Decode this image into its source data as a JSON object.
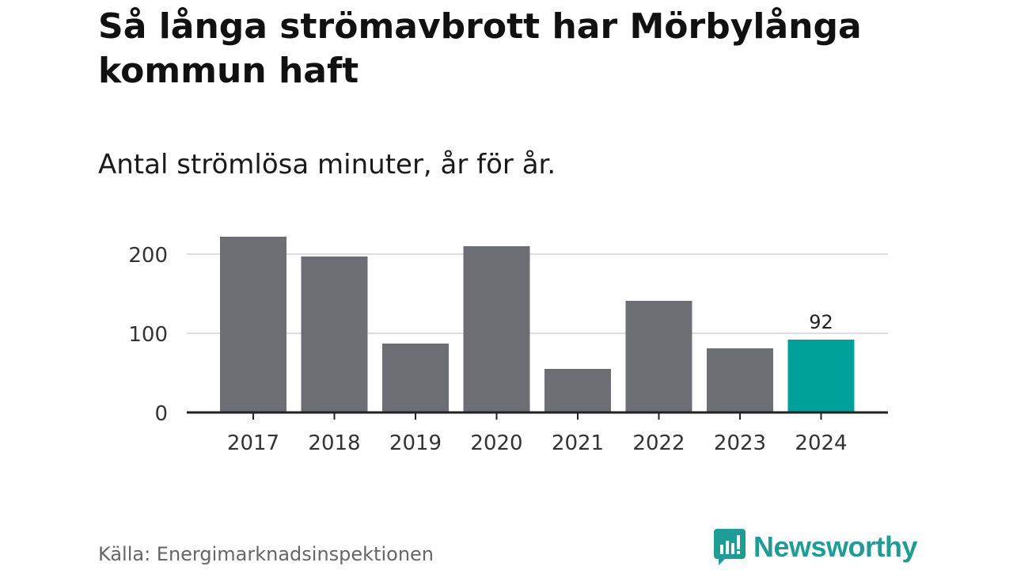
{
  "title": "Så långa strömavbrott har Mörbylånga kommun haft",
  "subtitle": "Antal strömlösa minuter, år för år.",
  "source": "Källa: Energimarknadsinspektionen",
  "brand": {
    "name": "Newsworthy",
    "icon": "newsworthy-logo-icon",
    "color": "#1c9e97"
  },
  "colors": {
    "bar": "#6d6d74",
    "highlight": "#00a19a",
    "grid": "#dddddd",
    "axis": "#222222"
  },
  "chart_data": {
    "type": "bar",
    "categories": [
      "2017",
      "2018",
      "2019",
      "2020",
      "2021",
      "2022",
      "2023",
      "2024"
    ],
    "values": [
      222,
      197,
      87,
      210,
      55,
      141,
      81,
      92
    ],
    "highlight_index": 7,
    "data_labels": [
      {
        "index": 7,
        "label": "92"
      }
    ],
    "yticks": [
      0,
      100,
      200
    ],
    "ylim": [
      0,
      222
    ],
    "xlabel": "",
    "ylabel": "",
    "grid": true
  }
}
